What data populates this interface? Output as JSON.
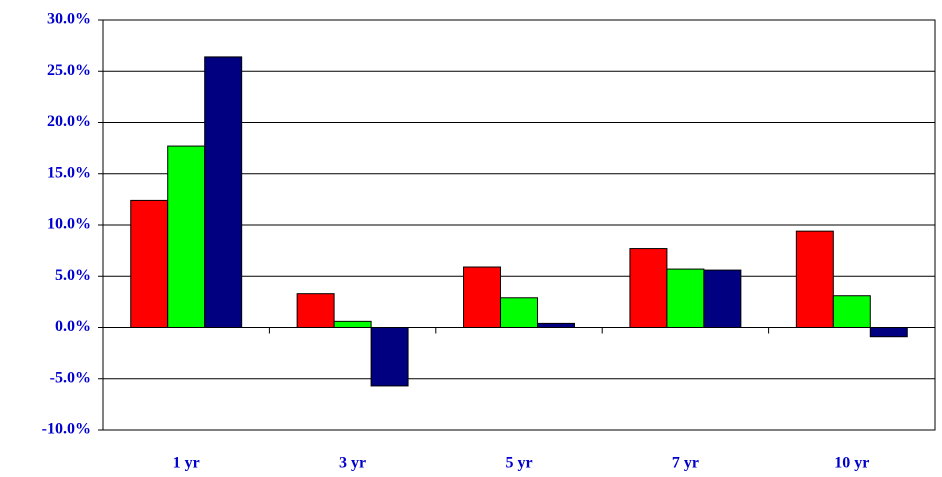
{
  "chart_data": {
    "type": "bar",
    "categories": [
      "1 yr",
      "3 yr",
      "5 yr",
      "7 yr",
      "10 yr"
    ],
    "series": [
      {
        "color": "#ff0000",
        "values": [
          12.4,
          3.3,
          5.9,
          7.7,
          9.4
        ]
      },
      {
        "color": "#00ff00",
        "values": [
          17.7,
          0.6,
          2.9,
          5.7,
          3.1
        ]
      },
      {
        "color": "#000080",
        "values": [
          26.4,
          -5.7,
          0.4,
          5.6,
          -0.9
        ]
      }
    ],
    "ylim": [
      -10,
      30
    ],
    "yticks": [
      {
        "value": -10,
        "label": "-10.0%"
      },
      {
        "value": -5,
        "label": "-5.0%"
      },
      {
        "value": 0,
        "label": "0.0%"
      },
      {
        "value": 5,
        "label": "5.0%"
      },
      {
        "value": 10,
        "label": "10.0%"
      },
      {
        "value": 15,
        "label": "15.0%"
      },
      {
        "value": 20,
        "label": "20.0%"
      },
      {
        "value": 25,
        "label": "25.0%"
      },
      {
        "value": 30,
        "label": "30.0%"
      }
    ],
    "grid": true
  }
}
